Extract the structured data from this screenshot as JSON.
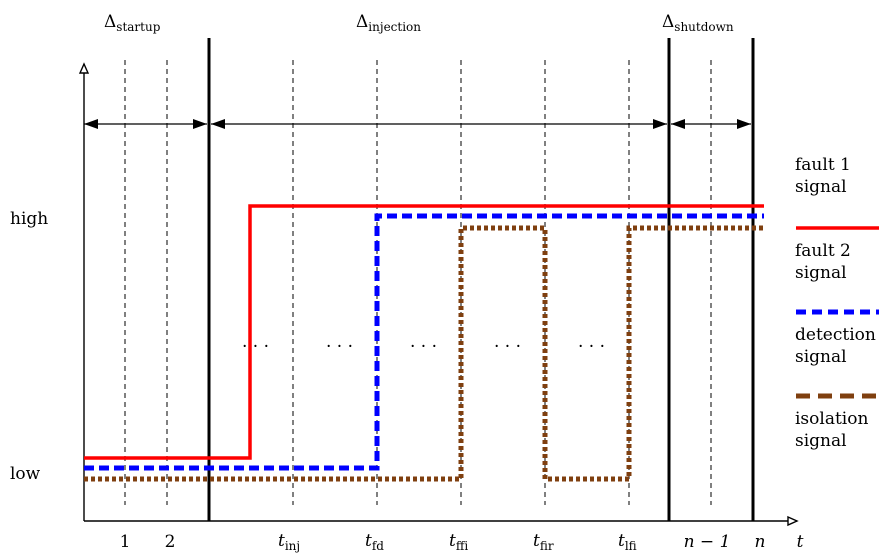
{
  "phases": {
    "startup": {
      "symbol": "Δ",
      "sub": "startup"
    },
    "injection": {
      "symbol": "Δ",
      "sub": "injection"
    },
    "shutdown": {
      "symbol": "Δ",
      "sub": "shutdown"
    }
  },
  "y_levels": {
    "high": "high",
    "low": "low"
  },
  "x_ticks": [
    {
      "id": "1",
      "main": "1",
      "sub": ""
    },
    {
      "id": "2",
      "main": "2",
      "sub": ""
    },
    {
      "id": "tinj",
      "main": "t",
      "sub": "inj"
    },
    {
      "id": "tfd",
      "main": "t",
      "sub": "fd"
    },
    {
      "id": "tffi",
      "main": "t",
      "sub": "ffi"
    },
    {
      "id": "tfir",
      "main": "t",
      "sub": "fir"
    },
    {
      "id": "tlfi",
      "main": "t",
      "sub": "lfi"
    },
    {
      "id": "nm1",
      "main": "n − 1",
      "sub": ""
    },
    {
      "id": "n",
      "main": "n",
      "sub": ""
    }
  ],
  "x_axis_label": "t",
  "ellipsis": "· · ·",
  "legend": [
    {
      "line1": "fault 1",
      "line2": "signal",
      "color": "#ff0000",
      "dash": "solid"
    },
    {
      "line1": "fault 2",
      "line2": "signal",
      "color": "#0000ff",
      "dash": "dash"
    },
    {
      "line1": "detection",
      "line2": "signal",
      "color": "#7f3f0f",
      "dash": "dash"
    },
    {
      "line1": "isolation",
      "line2": "signal",
      "color": "",
      "dash": ""
    }
  ],
  "colors": {
    "fault1": "#ff0000",
    "fault2": "#0000ff",
    "detection": "#7f3f0f"
  }
}
